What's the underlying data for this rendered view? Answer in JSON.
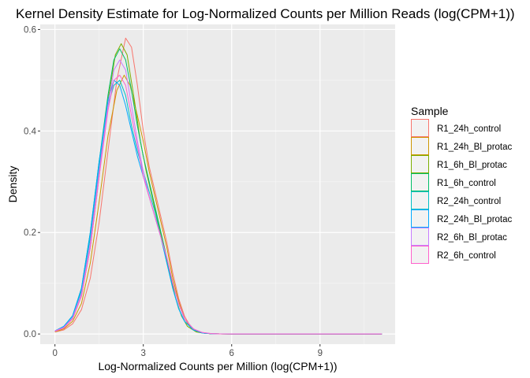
{
  "chart_data": {
    "type": "line",
    "title": "Kernel Density Estimate for Log-Normalized Counts per Million Reads (log(CPM+1))",
    "xlabel": "Log-Normalized Counts per Million (log(CPM+1))",
    "ylabel": "Density",
    "xlim": [
      -0.5,
      11.55
    ],
    "ylim": [
      -0.02,
      0.61
    ],
    "xticks": [
      0,
      3,
      6,
      9
    ],
    "xtick_labels": [
      "0",
      "3",
      "6",
      "9"
    ],
    "yticks": [
      0.0,
      0.2,
      0.4,
      0.6
    ],
    "ytick_labels": [
      "0.0",
      "0.2",
      "0.4",
      "0.6"
    ],
    "grid": true,
    "legend": {
      "title": "Sample",
      "position": "right"
    },
    "series": [
      {
        "name": "R1_24h_control",
        "color": "#F8766D",
        "x": [
          0,
          0.3,
          0.6,
          0.9,
          1.2,
          1.5,
          1.8,
          2.1,
          2.4,
          2.6,
          2.8,
          3.0,
          3.2,
          3.4,
          3.6,
          3.8,
          4.0,
          4.2,
          4.4,
          4.6,
          4.8,
          5.0,
          5.3,
          5.6,
          6.0,
          8.0,
          11.1
        ],
        "y": [
          0.004,
          0.008,
          0.02,
          0.048,
          0.11,
          0.22,
          0.36,
          0.5,
          0.583,
          0.565,
          0.49,
          0.4,
          0.33,
          0.28,
          0.23,
          0.18,
          0.12,
          0.07,
          0.035,
          0.015,
          0.006,
          0.002,
          0.0006,
          0.0002,
          0.0,
          0.0,
          0.0
        ]
      },
      {
        "name": "R1_24h_Bl_protac",
        "color": "#CD9600",
        "x": [
          0,
          0.3,
          0.6,
          0.9,
          1.2,
          1.5,
          1.8,
          2.1,
          2.35,
          2.55,
          2.8,
          3.0,
          3.2,
          3.4,
          3.6,
          3.8,
          4.0,
          4.2,
          4.4,
          4.6,
          4.8,
          5.0,
          5.3,
          5.6,
          6.0,
          8.0,
          11.1
        ],
        "y": [
          0.004,
          0.01,
          0.025,
          0.06,
          0.14,
          0.26,
          0.39,
          0.48,
          0.51,
          0.49,
          0.43,
          0.38,
          0.32,
          0.27,
          0.22,
          0.17,
          0.11,
          0.065,
          0.03,
          0.013,
          0.005,
          0.002,
          0.0005,
          0.0002,
          0.0,
          0.0,
          0.0
        ]
      },
      {
        "name": "R1_6h_Bl_protac",
        "color": "#7CAE00",
        "x": [
          0,
          0.3,
          0.6,
          0.9,
          1.2,
          1.5,
          1.8,
          2.05,
          2.25,
          2.45,
          2.7,
          2.9,
          3.1,
          3.3,
          3.5,
          3.7,
          3.9,
          4.1,
          4.3,
          4.5,
          4.8,
          5.0,
          5.3,
          5.6,
          6.0,
          8.0,
          11.1
        ],
        "y": [
          0.005,
          0.012,
          0.03,
          0.075,
          0.17,
          0.31,
          0.46,
          0.55,
          0.572,
          0.55,
          0.46,
          0.38,
          0.32,
          0.27,
          0.22,
          0.17,
          0.12,
          0.07,
          0.035,
          0.015,
          0.004,
          0.002,
          0.0005,
          0.0002,
          0.0,
          0.0,
          0.0
        ]
      },
      {
        "name": "R1_6h_control",
        "color": "#00BE67",
        "x": [
          0,
          0.3,
          0.6,
          0.9,
          1.2,
          1.5,
          1.8,
          2.0,
          2.2,
          2.4,
          2.6,
          2.8,
          3.0,
          3.2,
          3.4,
          3.6,
          3.8,
          4.0,
          4.2,
          4.4,
          4.7,
          5.0,
          5.3,
          5.6,
          6.0,
          8.0,
          11.1
        ],
        "y": [
          0.006,
          0.015,
          0.036,
          0.09,
          0.2,
          0.34,
          0.47,
          0.54,
          0.562,
          0.54,
          0.48,
          0.41,
          0.35,
          0.3,
          0.25,
          0.2,
          0.15,
          0.1,
          0.06,
          0.03,
          0.01,
          0.002,
          0.0005,
          0.0002,
          0.0,
          0.0,
          0.0
        ]
      },
      {
        "name": "R2_24h_control",
        "color": "#00BFC4",
        "x": [
          0,
          0.3,
          0.6,
          0.9,
          1.2,
          1.5,
          1.8,
          2.0,
          2.2,
          2.4,
          2.6,
          2.8,
          3.0,
          3.2,
          3.4,
          3.6,
          3.8,
          4.0,
          4.2,
          4.4,
          4.7,
          5.0,
          5.3,
          5.6,
          6.0,
          8.0,
          11.1
        ],
        "y": [
          0.006,
          0.014,
          0.035,
          0.085,
          0.19,
          0.33,
          0.45,
          0.49,
          0.5,
          0.47,
          0.41,
          0.36,
          0.32,
          0.28,
          0.24,
          0.19,
          0.14,
          0.09,
          0.05,
          0.025,
          0.008,
          0.002,
          0.0005,
          0.0002,
          0.0,
          0.0,
          0.0
        ]
      },
      {
        "name": "R2_24h_Bl_protac",
        "color": "#00A9FF",
        "x": [
          0,
          0.3,
          0.6,
          0.9,
          1.2,
          1.5,
          1.8,
          2.0,
          2.2,
          2.4,
          2.6,
          2.8,
          3.0,
          3.2,
          3.4,
          3.6,
          3.8,
          4.0,
          4.2,
          4.4,
          4.7,
          5.0,
          5.3,
          5.6,
          6.0,
          8.0,
          11.1
        ],
        "y": [
          0.006,
          0.015,
          0.036,
          0.09,
          0.2,
          0.34,
          0.46,
          0.5,
          0.49,
          0.45,
          0.4,
          0.35,
          0.31,
          0.27,
          0.23,
          0.19,
          0.14,
          0.09,
          0.05,
          0.025,
          0.008,
          0.002,
          0.0005,
          0.0002,
          0.0,
          0.0,
          0.0
        ]
      },
      {
        "name": "R2_6h_Bl_protac",
        "color": "#C77CFF",
        "x": [
          0,
          0.3,
          0.6,
          0.9,
          1.2,
          1.5,
          1.8,
          2.0,
          2.2,
          2.4,
          2.6,
          2.8,
          3.0,
          3.2,
          3.4,
          3.6,
          3.8,
          4.0,
          4.2,
          4.4,
          4.7,
          5.0,
          5.3,
          5.6,
          6.0,
          8.0,
          11.1
        ],
        "y": [
          0.006,
          0.013,
          0.032,
          0.08,
          0.18,
          0.32,
          0.45,
          0.52,
          0.54,
          0.52,
          0.45,
          0.38,
          0.32,
          0.27,
          0.23,
          0.19,
          0.15,
          0.1,
          0.06,
          0.03,
          0.01,
          0.003,
          0.0008,
          0.0002,
          0.0,
          0.0,
          0.0
        ]
      },
      {
        "name": "R2_6h_control",
        "color": "#FF61CC",
        "x": [
          0,
          0.3,
          0.6,
          0.9,
          1.2,
          1.5,
          1.8,
          2.0,
          2.2,
          2.4,
          2.6,
          2.8,
          3.0,
          3.2,
          3.4,
          3.6,
          3.8,
          4.0,
          4.2,
          4.4,
          4.7,
          5.0,
          5.3,
          5.6,
          6.0,
          8.0,
          11.1
        ],
        "y": [
          0.005,
          0.012,
          0.03,
          0.075,
          0.17,
          0.31,
          0.44,
          0.5,
          0.51,
          0.49,
          0.43,
          0.37,
          0.31,
          0.27,
          0.23,
          0.19,
          0.15,
          0.1,
          0.06,
          0.03,
          0.01,
          0.003,
          0.0008,
          0.0002,
          0.0,
          0.0,
          0.0
        ]
      }
    ]
  }
}
